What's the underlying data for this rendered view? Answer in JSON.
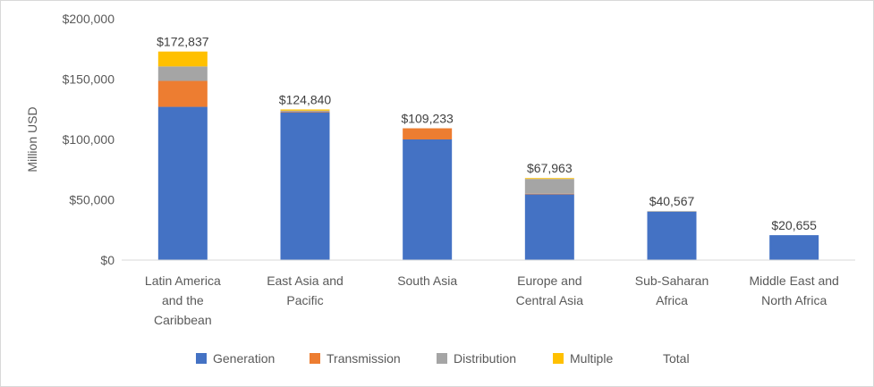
{
  "chart_data": {
    "type": "bar",
    "stacked": true,
    "title": "",
    "xlabel": "",
    "ylabel": "Million USD",
    "ylim": [
      0,
      200000
    ],
    "yticks": [
      0,
      50000,
      100000,
      150000,
      200000
    ],
    "ytick_labels": [
      "$0",
      "$50,000",
      "$100,000",
      "$150,000",
      "$200,000"
    ],
    "grid": false,
    "legend_position": "bottom",
    "categories": [
      [
        "Latin America",
        "and the",
        "Caribbean"
      ],
      [
        "East Asia and",
        "Pacific"
      ],
      [
        "South Asia"
      ],
      [
        "Europe and",
        "Central Asia"
      ],
      [
        "Sub-Saharan",
        "Africa"
      ],
      [
        "Middle East and",
        "North Africa"
      ]
    ],
    "series": [
      {
        "name": "Generation",
        "color": "#4472c4",
        "values": [
          127000,
          122500,
          100000,
          54500,
          40000,
          20655
        ]
      },
      {
        "name": "Transmission",
        "color": "#ed7d31",
        "values": [
          21500,
          500,
          9233,
          500,
          0,
          0
        ]
      },
      {
        "name": "Distribution",
        "color": "#a5a5a5",
        "values": [
          12000,
          840,
          0,
          12263,
          567,
          0
        ]
      },
      {
        "name": "Multiple",
        "color": "#ffc000",
        "values": [
          12337,
          1000,
          0,
          700,
          0,
          0
        ]
      }
    ],
    "totals": [
      "$172,837",
      "$124,840",
      "$109,233",
      "$67,963",
      "$40,567",
      "$20,655"
    ],
    "totals_values": [
      172837,
      124840,
      109233,
      67963,
      40567,
      20655
    ],
    "legend_total_label": "Total"
  }
}
